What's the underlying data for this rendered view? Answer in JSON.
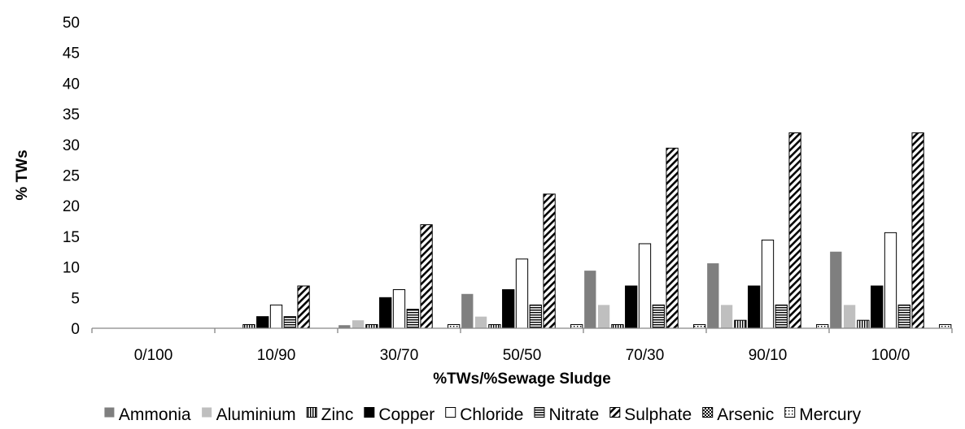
{
  "chart_data": {
    "type": "bar",
    "title": "",
    "xlabel": "%TWs/%Sewage Sludge",
    "ylabel": "% TWs",
    "ylim": [
      0,
      50
    ],
    "yticks": [
      0,
      5,
      10,
      15,
      20,
      25,
      30,
      35,
      40,
      45,
      50
    ],
    "grid": false,
    "legend_position": "bottom",
    "categories": [
      "0/100",
      "10/90",
      "30/70",
      "50/50",
      "70/30",
      "90/10",
      "100/0"
    ],
    "series": [
      {
        "name": "Ammonia",
        "pattern": "solid-dark-gray",
        "values": [
          0,
          0,
          0.5,
          5.6,
          9.4,
          10.6,
          12.5
        ]
      },
      {
        "name": "Aluminium",
        "pattern": "solid-light-gray",
        "values": [
          0,
          0,
          1.3,
          1.9,
          3.8,
          3.8,
          3.8
        ]
      },
      {
        "name": "Zinc",
        "pattern": "vertical-lines",
        "values": [
          0,
          0.6,
          0.6,
          0.6,
          0.6,
          1.3,
          1.3
        ]
      },
      {
        "name": "Copper",
        "pattern": "solid-black",
        "values": [
          0,
          1.9,
          5.0,
          6.3,
          6.9,
          6.9,
          6.9
        ]
      },
      {
        "name": "Chloride",
        "pattern": "white",
        "values": [
          0,
          3.8,
          6.3,
          11.3,
          13.8,
          14.4,
          15.6
        ]
      },
      {
        "name": "Nitrate",
        "pattern": "horizontal-lines",
        "values": [
          0,
          1.9,
          3.1,
          3.8,
          3.8,
          3.8,
          3.8
        ]
      },
      {
        "name": "Sulphate",
        "pattern": "diagonal-lines",
        "values": [
          0,
          6.9,
          16.9,
          21.9,
          29.4,
          31.9,
          31.9
        ]
      },
      {
        "name": "Arsenic",
        "pattern": "checker",
        "values": [
          0,
          0,
          0,
          0,
          0,
          0,
          0
        ]
      },
      {
        "name": "Mercury",
        "pattern": "dots",
        "values": [
          0,
          0,
          0.6,
          0.6,
          0.6,
          0.6,
          0.6
        ]
      }
    ]
  },
  "colors": {
    "ammonia": "#7f7f7f",
    "aluminium": "#bfbfbf",
    "axis": "#868686",
    "ink": "#000000"
  }
}
